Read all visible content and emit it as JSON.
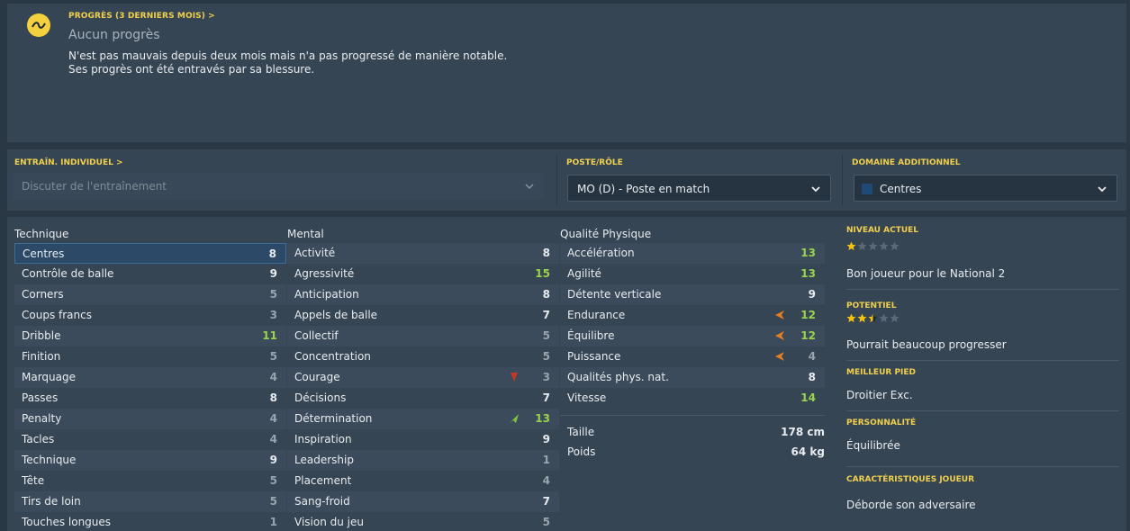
{
  "progress": {
    "link": "PROGRÈS (3 DERNIERS MOIS) >",
    "title": "Aucun progrès",
    "line1": "N'est pas mauvais depuis deux mois mais n'a pas progressé de manière notable.",
    "line2": "Ses progrès ont été entravés par sa blessure."
  },
  "controls": {
    "training_label": "ENTRAÎN. INDIVIDUEL >",
    "training_value": "Discuter de l'entraînement",
    "role_label": "POSTE/RÔLE",
    "role_value": "MO (D) - Poste en match",
    "domain_label": "DOMAINE ADDITIONNEL",
    "domain_value": "Centres"
  },
  "headers": {
    "technique": "Technique",
    "mental": "Mental",
    "physique": "Qualité Physique"
  },
  "technique": [
    {
      "name": "Centres",
      "value": "8"
    },
    {
      "name": "Contrôle de balle",
      "value": "9"
    },
    {
      "name": "Corners",
      "value": "5"
    },
    {
      "name": "Coups francs",
      "value": "3"
    },
    {
      "name": "Dribble",
      "value": "11"
    },
    {
      "name": "Finition",
      "value": "5"
    },
    {
      "name": "Marquage",
      "value": "4"
    },
    {
      "name": "Passes",
      "value": "8"
    },
    {
      "name": "Penalty",
      "value": "4"
    },
    {
      "name": "Tacles",
      "value": "4"
    },
    {
      "name": "Technique",
      "value": "9"
    },
    {
      "name": "Tête",
      "value": "5"
    },
    {
      "name": "Tirs de loin",
      "value": "5"
    },
    {
      "name": "Touches longues",
      "value": "1"
    }
  ],
  "mental": [
    {
      "name": "Activité",
      "value": "8"
    },
    {
      "name": "Agressivité",
      "value": "15"
    },
    {
      "name": "Anticipation",
      "value": "8"
    },
    {
      "name": "Appels de balle",
      "value": "7"
    },
    {
      "name": "Collectif",
      "value": "5"
    },
    {
      "name": "Concentration",
      "value": "5"
    },
    {
      "name": "Courage",
      "value": "3"
    },
    {
      "name": "Décisions",
      "value": "7"
    },
    {
      "name": "Détermination",
      "value": "13"
    },
    {
      "name": "Inspiration",
      "value": "9"
    },
    {
      "name": "Leadership",
      "value": "1"
    },
    {
      "name": "Placement",
      "value": "4"
    },
    {
      "name": "Sang-froid",
      "value": "7"
    },
    {
      "name": "Vision du jeu",
      "value": "5"
    }
  ],
  "physique": [
    {
      "name": "Accélération",
      "value": "13"
    },
    {
      "name": "Agilité",
      "value": "13"
    },
    {
      "name": "Détente verticale",
      "value": "9"
    },
    {
      "name": "Endurance",
      "value": "12"
    },
    {
      "name": "Équilibre",
      "value": "12"
    },
    {
      "name": "Puissance",
      "value": "4"
    },
    {
      "name": "Qualités phys. nat.",
      "value": "8"
    },
    {
      "name": "Vitesse",
      "value": "14"
    }
  ],
  "body": {
    "height_label": "Taille",
    "height_value": "178 cm",
    "weight_label": "Poids",
    "weight_value": "64 kg"
  },
  "profile": {
    "current_label": "NIVEAU ACTUEL",
    "current_stars": 1,
    "current_text": "Bon joueur pour le National 2",
    "potential_label": "POTENTIEL",
    "potential_stars": 2.5,
    "potential_text": "Pourrait beaucoup progresser",
    "foot_label": "MEILLEUR PIED",
    "foot_value": "Droitier Exc.",
    "personality_label": "PERSONNALITÉ",
    "personality_value": "Équilibrée",
    "traits_label": "CARACTÉRISTIQUES JOUEUR",
    "traits_value": "Déborde son adversaire"
  },
  "colors": {
    "accent": "#f0d04c",
    "good": "#9ad34b",
    "arrow_down": "#e67e22",
    "arrow_up": "#7dc43c"
  }
}
